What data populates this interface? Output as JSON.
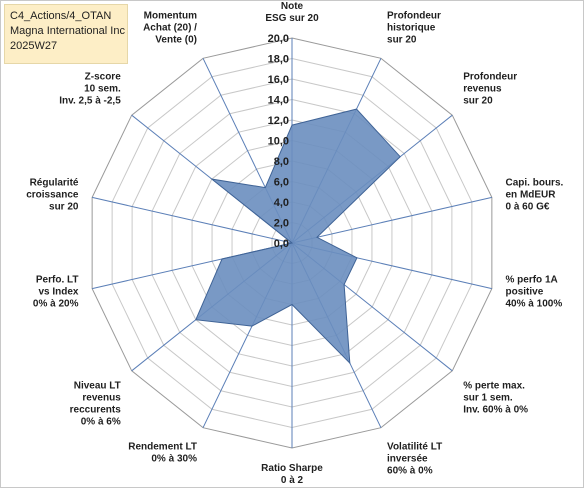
{
  "title_box": {
    "line1": "C4_Actions/4_OTAN",
    "line2": "Magna International Inc",
    "line3": "2025W27"
  },
  "chart_data": {
    "type": "radar",
    "rmin": 0,
    "rmax": 20,
    "tick_step": 2,
    "ticks": [
      "0,0",
      "2,0",
      "4,0",
      "6,0",
      "8,0",
      "10,0",
      "12,0",
      "14,0",
      "16,0",
      "18,0",
      "20,0"
    ],
    "grid": true,
    "fill_color": "#6a8ebf",
    "stroke_color": "#3f6396",
    "axes": [
      {
        "label": [
          "Note",
          "ESG sur 20"
        ],
        "value": 11.5
      },
      {
        "label": [
          "Profondeur",
          "historique",
          "sur 20"
        ],
        "value": 14.5
      },
      {
        "label": [
          "Profondeur",
          "revenus",
          "sur 20"
        ],
        "value": 13.5
      },
      {
        "label": [
          "Capi. bours.",
          "en MdEUR",
          "0 à 60 G€"
        ],
        "value": 2.5
      },
      {
        "label": [
          "% perfo 1A",
          "positive",
          "40% à 100%"
        ],
        "value": 6.5
      },
      {
        "label": [
          "% perte max.",
          "sur 1 sem.",
          "Inv. 60% à 0%"
        ],
        "value": 6.5
      },
      {
        "label": [
          "Volatilité LT",
          "inversée",
          "60% à 0%"
        ],
        "value": 13.0
      },
      {
        "label": [
          "Ratio Sharpe",
          "0 à 2"
        ],
        "value": 6.0
      },
      {
        "label": [
          "Rendement LT",
          "0% à 30%"
        ],
        "value": 9.0
      },
      {
        "label": [
          "Niveau LT",
          "revenus",
          "reccurents",
          "0% à 6%"
        ],
        "value": 12.0
      },
      {
        "label": [
          "Perfo. LT",
          "vs Index",
          "0% à 20%"
        ],
        "value": 7.0
      },
      {
        "label": [
          "Régularité",
          "croissance",
          "sur 20"
        ],
        "value": 0.0
      },
      {
        "label": [
          "Z-score",
          "10 sem.",
          "Inv. 2,5 à -2,5"
        ],
        "value": 10.0
      },
      {
        "label": [
          "Momentum",
          "Achat (20) /",
          "Vente (0)"
        ],
        "value": 6.0
      }
    ]
  }
}
